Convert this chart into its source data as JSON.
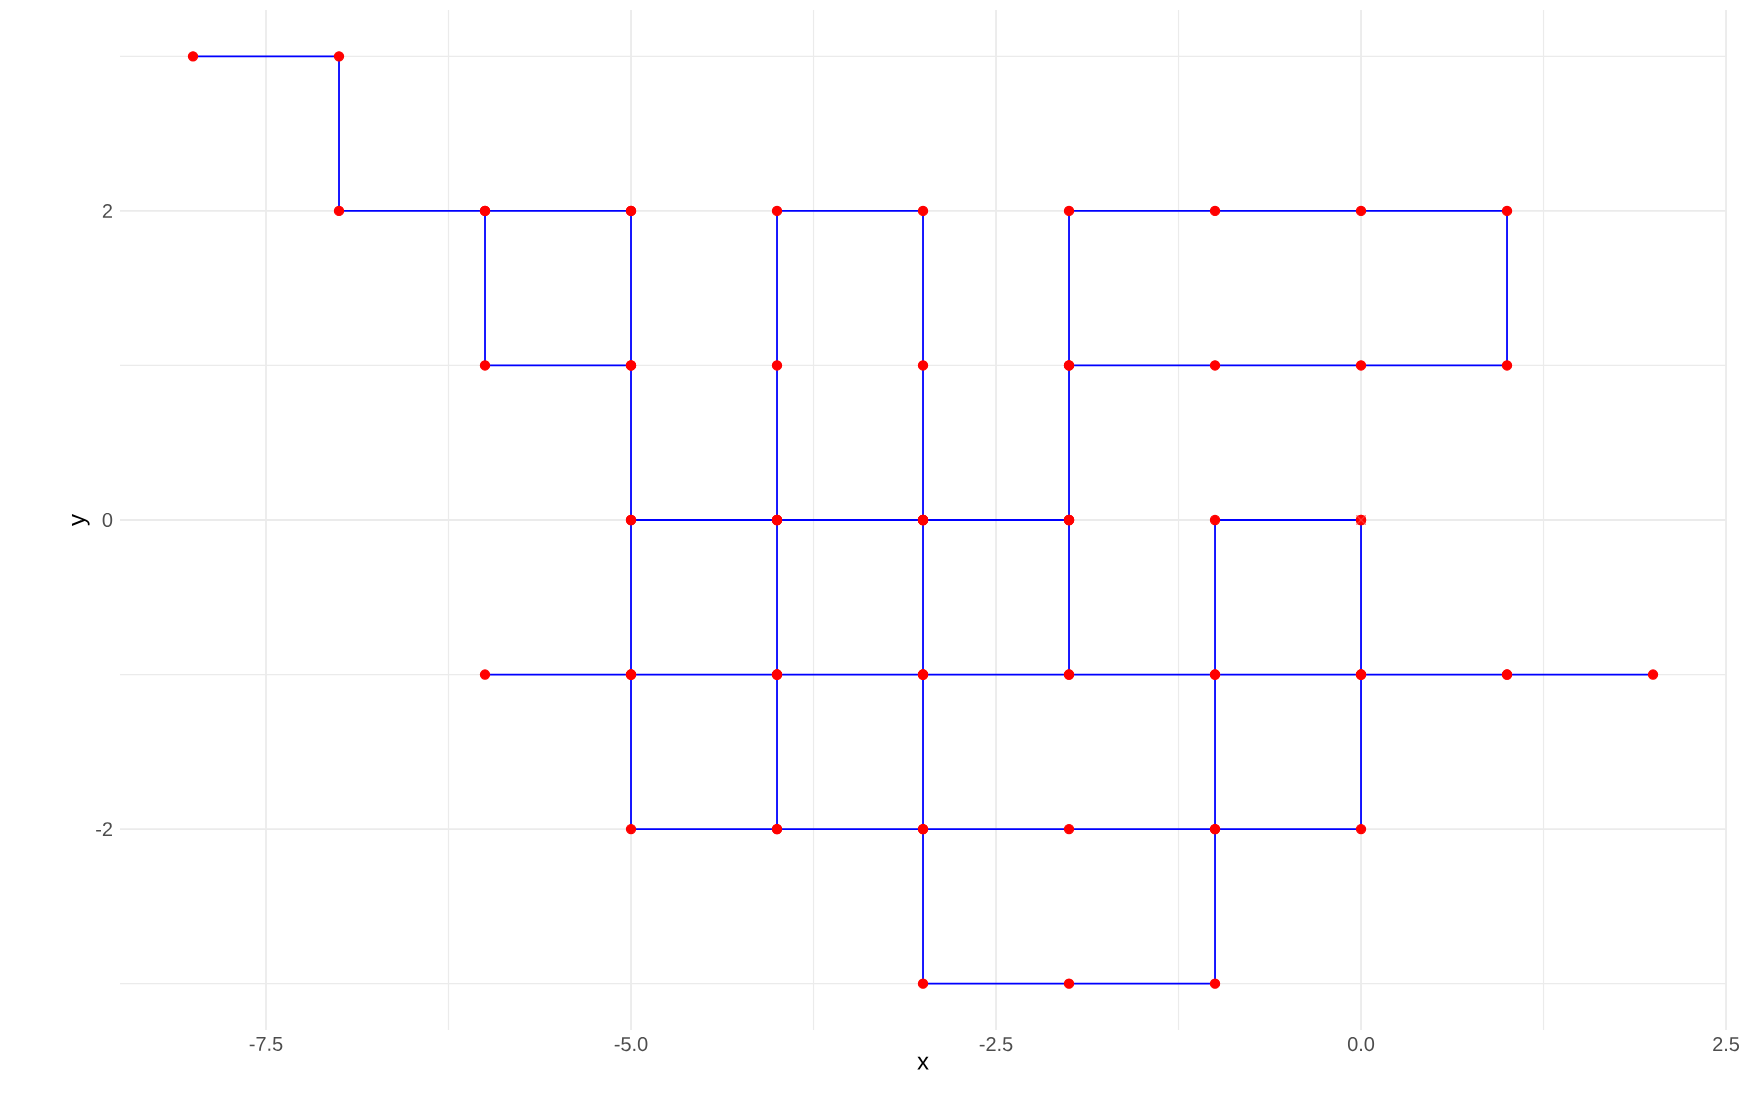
{
  "chart_data": {
    "type": "line",
    "xlabel": "x",
    "ylabel": "y",
    "xlim": [
      -8.5,
      2.5
    ],
    "ylim": [
      -3.3,
      3.3
    ],
    "xticks": [
      -7.5,
      {
        "value": -5,
        "label": "-5.0"
      },
      -2.5,
      {
        "value": 0,
        "label": "0.0"
      },
      2.5
    ],
    "yticks": [
      -2,
      0,
      2
    ],
    "grid": true,
    "series": [
      {
        "type": "line",
        "color": "#0000ff",
        "marker": "none",
        "x": [
          0,
          -1,
          -1,
          0,
          1,
          2,
          1,
          0,
          0,
          0,
          0,
          -1,
          -1,
          -2,
          -3,
          -3,
          -2,
          -1,
          -1,
          -2,
          -2,
          -3,
          -3,
          -2,
          -3,
          -3,
          -4,
          -5,
          -5,
          -4,
          -4,
          -4,
          -3,
          -3,
          -3,
          -3,
          -4,
          -4,
          -4,
          -4,
          -5,
          -6,
          -5,
          -5,
          -4,
          -3,
          -2,
          -2,
          -1,
          0,
          1,
          1,
          0,
          -1,
          -2,
          -2,
          -2,
          -3,
          -4,
          -5,
          -5,
          -6,
          -6,
          -5,
          -5,
          -5,
          -6,
          -7,
          -7,
          -8
        ],
        "values": [
          0,
          0,
          -1,
          -1,
          -1,
          -1,
          -1,
          -1,
          0,
          -1,
          -2,
          -2,
          -3,
          -3,
          -3,
          -2,
          -2,
          -2,
          -1,
          -1,
          0,
          0,
          -1,
          -1,
          -1,
          -2,
          -2,
          -2,
          -1,
          -1,
          -2,
          -1,
          -1,
          0,
          1,
          2,
          2,
          1,
          0,
          -1,
          -1,
          -1,
          -1,
          0,
          0,
          0,
          0,
          1,
          1,
          1,
          1,
          2,
          2,
          2,
          2,
          1,
          0,
          0,
          0,
          0,
          1,
          1,
          2,
          2,
          1,
          2,
          2,
          2,
          3,
          3
        ]
      },
      {
        "type": "scatter",
        "color": "#ff0000",
        "marker": "circle",
        "x": [
          0,
          -1,
          -1,
          0,
          1,
          2,
          1,
          0,
          0,
          0,
          0,
          -1,
          -1,
          -2,
          -3,
          -3,
          -2,
          -1,
          -1,
          -2,
          -2,
          -3,
          -3,
          -2,
          -3,
          -3,
          -4,
          -5,
          -5,
          -4,
          -4,
          -4,
          -3,
          -3,
          -3,
          -3,
          -4,
          -4,
          -4,
          -4,
          -5,
          -6,
          -5,
          -5,
          -4,
          -3,
          -2,
          -2,
          -1,
          0,
          1,
          1,
          0,
          -1,
          -2,
          -2,
          -2,
          -3,
          -4,
          -5,
          -5,
          -6,
          -6,
          -5,
          -5,
          -5,
          -6,
          -7,
          -7,
          -8
        ],
        "values": [
          0,
          0,
          -1,
          -1,
          -1,
          -1,
          -1,
          -1,
          0,
          -1,
          -2,
          -2,
          -3,
          -3,
          -3,
          -2,
          -2,
          -2,
          -1,
          -1,
          0,
          0,
          -1,
          -1,
          -1,
          -2,
          -2,
          -2,
          -1,
          -1,
          -2,
          -1,
          -1,
          0,
          1,
          2,
          2,
          1,
          0,
          -1,
          -1,
          -1,
          -1,
          0,
          0,
          0,
          0,
          1,
          1,
          1,
          1,
          2,
          2,
          2,
          2,
          1,
          0,
          0,
          0,
          0,
          1,
          1,
          2,
          2,
          1,
          2,
          2,
          2,
          3,
          3
        ]
      },
      {
        "type": "scatter",
        "color": "#ff3333",
        "marker": "cross",
        "x": [
          0
        ],
        "values": [
          0
        ]
      }
    ]
  }
}
